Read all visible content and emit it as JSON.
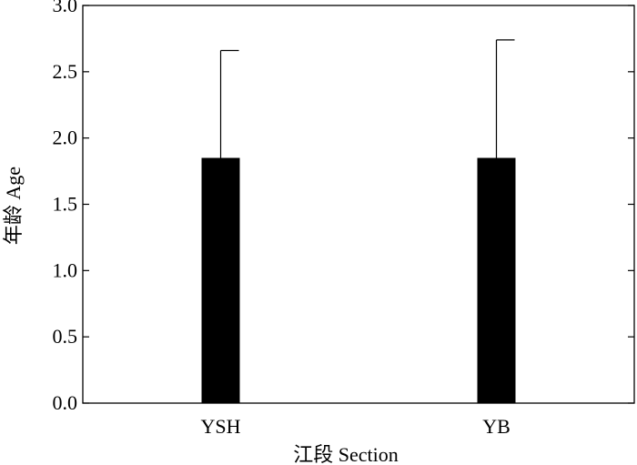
{
  "chart_data": {
    "type": "bar",
    "categories": [
      "YSH",
      "YB"
    ],
    "values": [
      1.85,
      1.85
    ],
    "error_upper": [
      2.66,
      2.74
    ],
    "xlabel": "江段 Section",
    "ylabel": "年龄 Age",
    "ylim": [
      0,
      3.0
    ],
    "yticks": [
      "0.0",
      "0.5",
      "1.0",
      "1.5",
      "2.0",
      "2.5",
      "3.0"
    ],
    "bar_color": "#000000",
    "grid": false,
    "legend": "none"
  }
}
